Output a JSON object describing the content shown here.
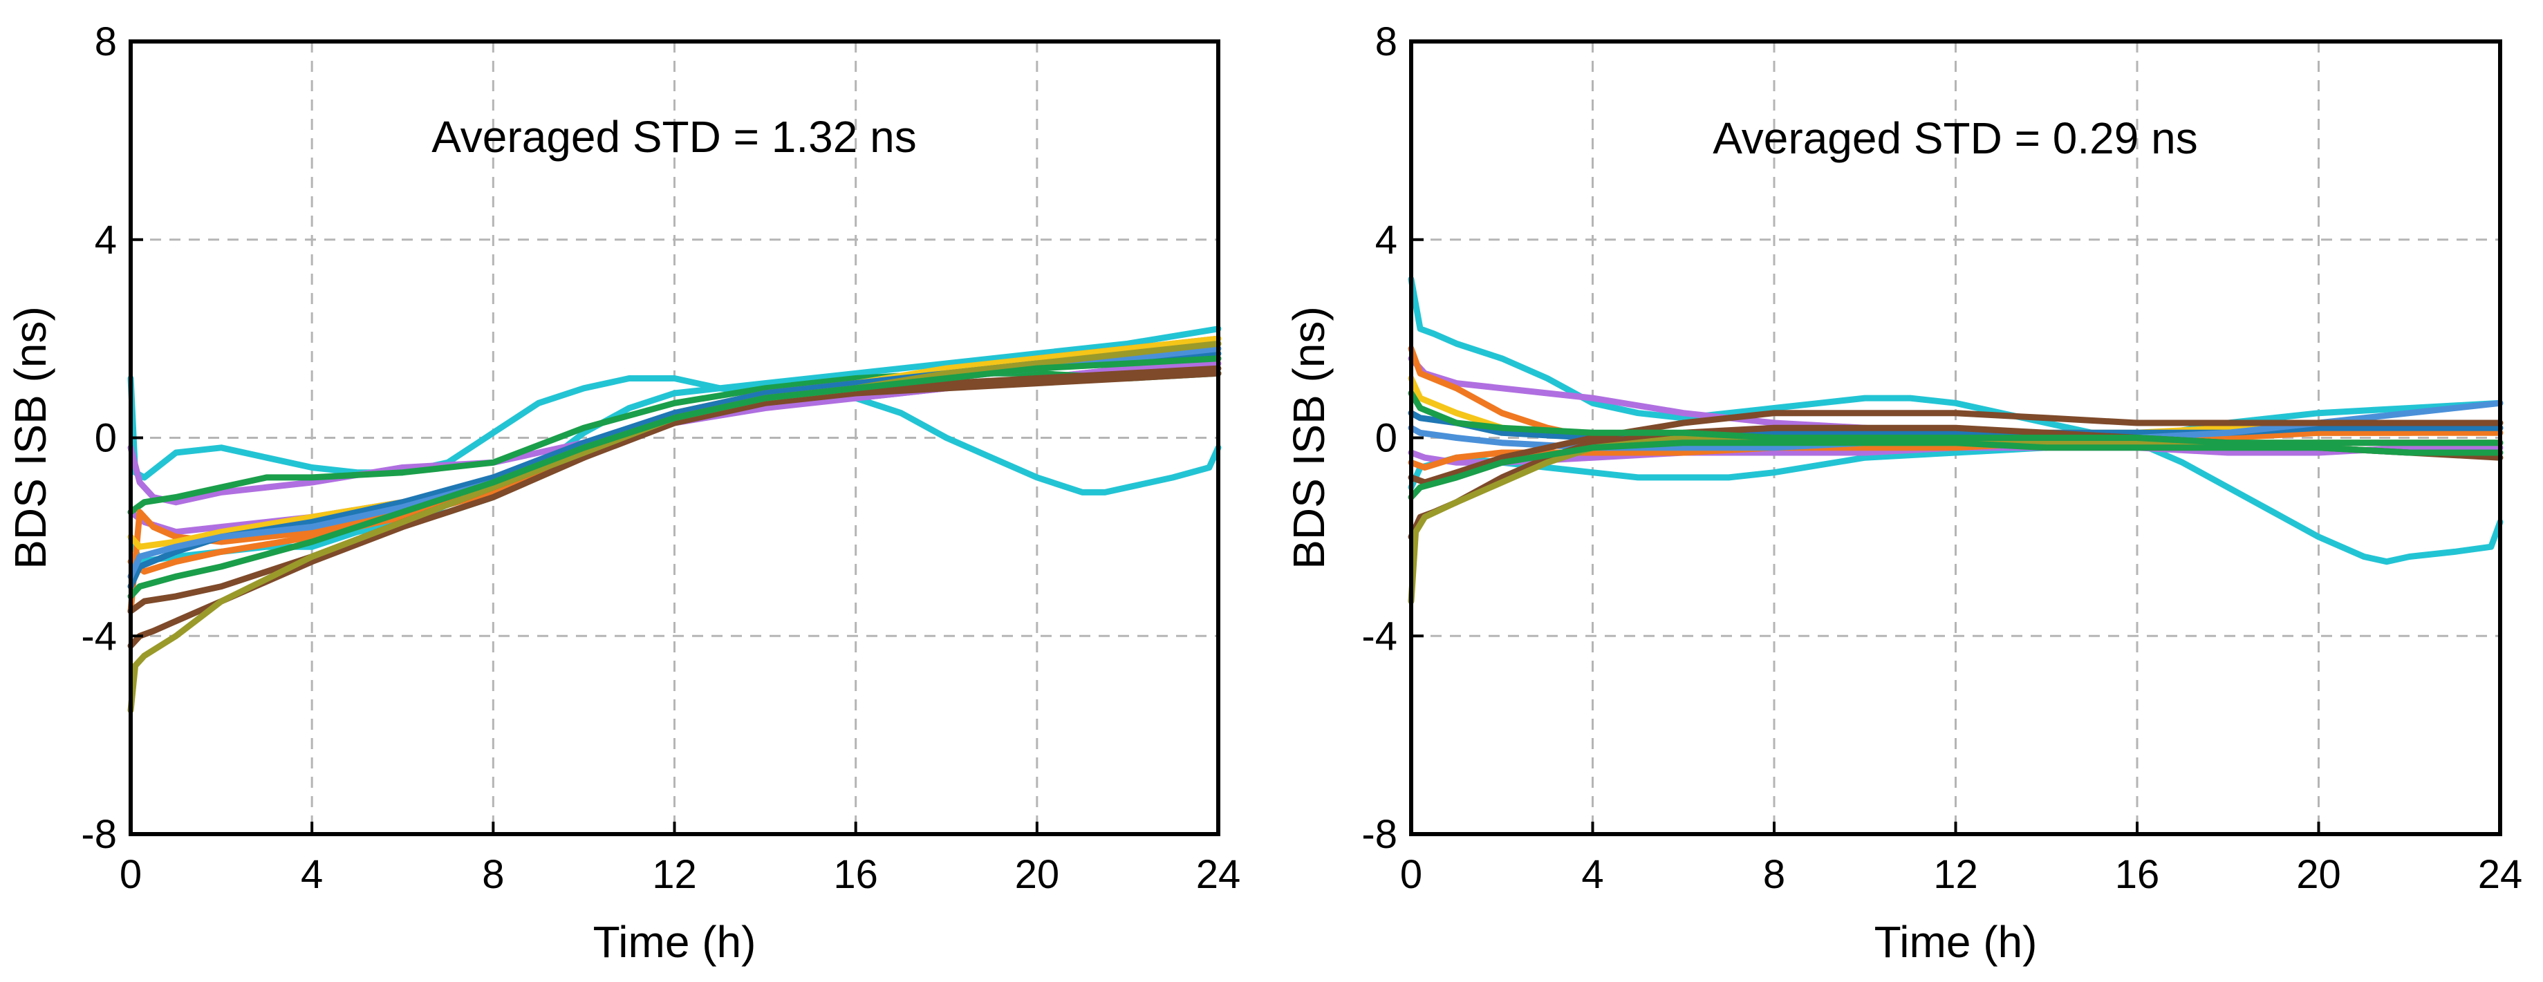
{
  "chart_data": [
    {
      "type": "line",
      "title": "",
      "annotation": "Averaged STD = 1.32 ns",
      "xlabel": "Time (h)",
      "ylabel": "BDS ISB (ns)",
      "xlim": [
        0,
        24
      ],
      "ylim": [
        -8,
        8
      ],
      "xticks": [
        "0",
        "4",
        "8",
        "12",
        "16",
        "20",
        "24"
      ],
      "yticks": [
        "8",
        "4",
        "0",
        "-4",
        "-8"
      ],
      "grid": true,
      "legend": "none",
      "series": [
        {
          "color": "#22C4D4",
          "x": [
            0,
            0.1,
            0.3,
            1,
            2,
            3,
            4,
            5,
            6,
            7,
            8,
            9,
            10,
            11,
            12,
            13,
            14,
            15,
            16,
            17,
            18,
            19,
            20,
            21,
            21.5,
            22,
            23,
            23.8,
            24
          ],
          "y": [
            1.2,
            -0.7,
            -0.8,
            -0.3,
            -0.2,
            -0.4,
            -0.6,
            -0.7,
            -0.7,
            -0.5,
            0.1,
            0.7,
            1.0,
            1.2,
            1.2,
            1.0,
            0.9,
            0.9,
            0.8,
            0.5,
            0.0,
            -0.4,
            -0.8,
            -1.1,
            -1.1,
            -1.0,
            -0.8,
            -0.6,
            -0.2
          ]
        },
        {
          "color": "#22C4D4",
          "x": [
            0,
            0.2,
            1,
            2,
            3,
            4,
            5,
            6,
            7,
            8,
            9,
            10,
            11,
            12,
            13,
            14,
            16,
            18,
            20,
            22,
            24
          ],
          "y": [
            -2.0,
            -2.5,
            -2.4,
            -2.3,
            -2.2,
            -2.2,
            -1.9,
            -1.7,
            -1.5,
            -1.2,
            -0.6,
            0.1,
            0.6,
            0.9,
            1.0,
            1.1,
            1.3,
            1.5,
            1.7,
            1.9,
            2.2
          ]
        },
        {
          "color": "#B06FE0",
          "x": [
            0,
            0.2,
            0.5,
            1,
            2,
            4,
            6,
            8,
            10,
            12,
            14,
            16,
            18,
            20,
            22,
            24
          ],
          "y": [
            -0.2,
            -0.9,
            -1.2,
            -1.3,
            -1.1,
            -0.9,
            -0.6,
            -0.5,
            -0.1,
            0.3,
            0.6,
            0.8,
            1.0,
            1.2,
            1.4,
            1.6
          ]
        },
        {
          "color": "#B06FE0",
          "x": [
            0,
            0.3,
            1,
            2,
            4,
            6,
            8,
            10,
            12,
            14,
            16,
            18,
            20,
            22,
            24
          ],
          "y": [
            -1.5,
            -1.7,
            -1.9,
            -1.8,
            -1.6,
            -1.3,
            -0.9,
            -0.2,
            0.4,
            0.7,
            0.8,
            1.0,
            1.2,
            1.4,
            1.5
          ]
        },
        {
          "color": "#1A9E4A",
          "x": [
            0,
            0.3,
            1,
            2,
            3,
            4,
            6,
            8,
            10,
            12,
            14,
            16,
            18,
            20,
            22,
            24
          ],
          "y": [
            -1.5,
            -1.3,
            -1.2,
            -1.0,
            -0.8,
            -0.8,
            -0.7,
            -0.5,
            0.2,
            0.7,
            1.0,
            1.2,
            1.3,
            1.3,
            1.2,
            1.3
          ]
        },
        {
          "color": "#F07820",
          "x": [
            0,
            0.2,
            0.5,
            1,
            2,
            4,
            6,
            8,
            10,
            12,
            14,
            16,
            18,
            20,
            22,
            24
          ],
          "y": [
            -3.5,
            -1.5,
            -1.8,
            -2.0,
            -2.1,
            -1.9,
            -1.5,
            -1.1,
            -0.4,
            0.5,
            0.9,
            1.1,
            1.3,
            1.6,
            1.8,
            2.0
          ]
        },
        {
          "color": "#F07820",
          "x": [
            0,
            0.3,
            1,
            2,
            4,
            6,
            8,
            10,
            12,
            14,
            16,
            18,
            20,
            22,
            24
          ],
          "y": [
            -2.5,
            -2.7,
            -2.5,
            -2.3,
            -2.0,
            -1.6,
            -1.1,
            -0.3,
            0.3,
            0.8,
            1.0,
            1.2,
            1.5,
            1.7,
            1.9
          ]
        },
        {
          "color": "#F5C518",
          "x": [
            0,
            0.2,
            1,
            2,
            4,
            6,
            8,
            10,
            12,
            14,
            16,
            18,
            20,
            22,
            24
          ],
          "y": [
            -2.0,
            -2.2,
            -2.1,
            -1.9,
            -1.6,
            -1.3,
            -0.9,
            -0.2,
            0.4,
            0.8,
            1.1,
            1.4,
            1.6,
            1.8,
            2.0
          ]
        },
        {
          "color": "#1F77B4",
          "x": [
            0,
            0.2,
            1,
            2,
            4,
            6,
            8,
            10,
            12,
            14,
            16,
            18,
            20,
            22,
            24
          ],
          "y": [
            -3.0,
            -2.6,
            -2.3,
            -2.0,
            -1.7,
            -1.3,
            -0.8,
            -0.1,
            0.5,
            0.9,
            1.1,
            1.3,
            1.5,
            1.6,
            1.7
          ]
        },
        {
          "color": "#4A90D9",
          "x": [
            0,
            0.2,
            1,
            2,
            4,
            6,
            8,
            10,
            12,
            14,
            16,
            18,
            20,
            22,
            24
          ],
          "y": [
            -2.8,
            -2.4,
            -2.2,
            -2.0,
            -1.8,
            -1.4,
            -0.9,
            -0.2,
            0.4,
            0.8,
            1.0,
            1.2,
            1.4,
            1.6,
            1.8
          ]
        },
        {
          "color": "#7E4A2A",
          "x": [
            0,
            0.2,
            0.5,
            1,
            2,
            4,
            6,
            8,
            10,
            12,
            14,
            16,
            18,
            20,
            22,
            24
          ],
          "y": [
            -4.2,
            -4.0,
            -3.9,
            -3.7,
            -3.3,
            -2.5,
            -1.8,
            -1.2,
            -0.4,
            0.3,
            0.7,
            0.9,
            1.0,
            1.1,
            1.2,
            1.3
          ]
        },
        {
          "color": "#7E4A2A",
          "x": [
            0,
            0.3,
            1,
            2,
            4,
            6,
            8,
            10,
            12,
            14,
            16,
            18,
            20,
            22,
            24
          ],
          "y": [
            -3.5,
            -3.3,
            -3.2,
            -3.0,
            -2.4,
            -1.7,
            -1.0,
            -0.3,
            0.4,
            0.8,
            1.0,
            1.1,
            1.2,
            1.3,
            1.4
          ]
        },
        {
          "color": "#9A9A2A",
          "x": [
            0,
            0.1,
            0.3,
            1,
            2,
            4,
            6,
            8,
            10,
            12,
            14,
            16,
            18,
            20,
            22,
            24
          ],
          "y": [
            -5.5,
            -4.6,
            -4.4,
            -4.0,
            -3.3,
            -2.4,
            -1.7,
            -1.0,
            -0.3,
            0.4,
            0.8,
            1.0,
            1.3,
            1.5,
            1.7,
            1.9
          ]
        },
        {
          "color": "#1A9E4A",
          "x": [
            0,
            0.2,
            1,
            2,
            4,
            6,
            8,
            10,
            12,
            14,
            16,
            18,
            20,
            22,
            24
          ],
          "y": [
            -3.2,
            -3.0,
            -2.8,
            -2.6,
            -2.1,
            -1.5,
            -0.9,
            -0.2,
            0.4,
            0.8,
            1.0,
            1.2,
            1.4,
            1.5,
            1.6
          ]
        }
      ]
    },
    {
      "type": "line",
      "title": "",
      "annotation": "Averaged STD = 0.29 ns",
      "xlabel": "Time (h)",
      "ylabel": "BDS ISB (ns)",
      "xlim": [
        0,
        24
      ],
      "ylim": [
        -8,
        8
      ],
      "xticks": [
        "0",
        "4",
        "8",
        "12",
        "16",
        "20",
        "24"
      ],
      "yticks": [
        "8",
        "4",
        "0",
        "-4",
        "-8"
      ],
      "grid": true,
      "legend": "none",
      "series": [
        {
          "color": "#22C4D4",
          "x": [
            0,
            0.2,
            0.5,
            1,
            2,
            3,
            4,
            5,
            6,
            7,
            8,
            9,
            10,
            11,
            12,
            13,
            14,
            15,
            16,
            17,
            18,
            19,
            20,
            21,
            21.5,
            22,
            23,
            23.8,
            24
          ],
          "y": [
            3.2,
            2.2,
            2.1,
            1.9,
            1.6,
            1.2,
            0.7,
            0.5,
            0.4,
            0.5,
            0.6,
            0.7,
            0.8,
            0.8,
            0.7,
            0.5,
            0.3,
            0.1,
            -0.1,
            -0.5,
            -1.0,
            -1.5,
            -2.0,
            -2.4,
            -2.5,
            -2.4,
            -2.3,
            -2.2,
            -1.7
          ]
        },
        {
          "color": "#22C4D4",
          "x": [
            0,
            0.2,
            1,
            2,
            3,
            4,
            5,
            6,
            7,
            8,
            10,
            12,
            14,
            16,
            18,
            20,
            22,
            24
          ],
          "y": [
            -1.0,
            -0.6,
            -0.4,
            -0.5,
            -0.6,
            -0.7,
            -0.8,
            -0.8,
            -0.8,
            -0.7,
            -0.4,
            -0.3,
            -0.2,
            0.0,
            0.3,
            0.5,
            0.6,
            0.7
          ]
        },
        {
          "color": "#B06FE0",
          "x": [
            0,
            0.3,
            1,
            2,
            3,
            4,
            6,
            8,
            10,
            12,
            14,
            16,
            18,
            20,
            22,
            24
          ],
          "y": [
            1.6,
            1.3,
            1.1,
            1.0,
            0.9,
            0.8,
            0.5,
            0.3,
            0.2,
            0.1,
            0.0,
            -0.1,
            -0.2,
            -0.2,
            -0.3,
            -0.3
          ]
        },
        {
          "color": "#B06FE0",
          "x": [
            0,
            0.3,
            1,
            2,
            4,
            6,
            8,
            10,
            12,
            14,
            16,
            18,
            20,
            22,
            24
          ],
          "y": [
            -0.3,
            -0.4,
            -0.5,
            -0.5,
            -0.4,
            -0.3,
            -0.3,
            -0.3,
            -0.2,
            -0.2,
            -0.2,
            -0.3,
            -0.3,
            -0.2,
            -0.2
          ]
        },
        {
          "color": "#F07820",
          "x": [
            0,
            0.2,
            1,
            2,
            3,
            4,
            6,
            8,
            10,
            12,
            14,
            16,
            18,
            20,
            22,
            24
          ],
          "y": [
            1.8,
            1.3,
            1.0,
            0.5,
            0.2,
            0.0,
            -0.1,
            -0.1,
            -0.1,
            -0.1,
            -0.1,
            0.0,
            0.1,
            0.1,
            0.1,
            0.1
          ]
        },
        {
          "color": "#F07820",
          "x": [
            0,
            0.3,
            1,
            2,
            4,
            6,
            8,
            10,
            12,
            14,
            16,
            18,
            20,
            22,
            24
          ],
          "y": [
            -0.5,
            -0.6,
            -0.4,
            -0.3,
            -0.3,
            -0.3,
            -0.2,
            -0.2,
            -0.2,
            -0.1,
            -0.1,
            0.0,
            0.1,
            0.1,
            0.2
          ]
        },
        {
          "color": "#F5C518",
          "x": [
            0,
            0.2,
            1,
            2,
            4,
            6,
            8,
            10,
            12,
            14,
            16,
            18,
            20,
            22,
            24
          ],
          "y": [
            1.2,
            0.8,
            0.5,
            0.2,
            0.0,
            0.0,
            0.0,
            0.0,
            0.1,
            0.1,
            0.1,
            0.2,
            0.2,
            0.3,
            0.3
          ]
        },
        {
          "color": "#1F77B4",
          "x": [
            0,
            0.2,
            1,
            2,
            4,
            6,
            8,
            10,
            12,
            14,
            16,
            18,
            20,
            22,
            24
          ],
          "y": [
            0.5,
            0.4,
            0.3,
            0.1,
            0.0,
            0.0,
            0.1,
            0.1,
            0.1,
            0.1,
            0.1,
            0.1,
            0.2,
            0.2,
            0.2
          ]
        },
        {
          "color": "#4A90D9",
          "x": [
            0,
            0.2,
            1,
            2,
            4,
            6,
            8,
            10,
            12,
            14,
            16,
            18,
            20,
            22,
            24
          ],
          "y": [
            0.2,
            0.1,
            0.0,
            -0.1,
            -0.2,
            -0.2,
            -0.2,
            -0.1,
            -0.1,
            0.0,
            0.0,
            0.1,
            0.3,
            0.5,
            0.7
          ]
        },
        {
          "color": "#7E4A2A",
          "x": [
            0,
            0.2,
            0.5,
            1,
            2,
            3,
            4,
            6,
            8,
            10,
            12,
            14,
            16,
            18,
            20,
            22,
            24
          ],
          "y": [
            -2.0,
            -1.6,
            -1.5,
            -1.3,
            -0.8,
            -0.4,
            -0.1,
            0.1,
            0.2,
            0.2,
            0.2,
            0.1,
            0.0,
            -0.1,
            -0.2,
            -0.3,
            -0.4
          ]
        },
        {
          "color": "#7E4A2A",
          "x": [
            0,
            0.3,
            1,
            2,
            4,
            6,
            8,
            10,
            12,
            14,
            16,
            18,
            20,
            22,
            24
          ],
          "y": [
            -0.8,
            -0.9,
            -0.7,
            -0.4,
            0.0,
            0.3,
            0.5,
            0.5,
            0.5,
            0.4,
            0.3,
            0.3,
            0.3,
            0.3,
            0.3
          ]
        },
        {
          "color": "#9A9A2A",
          "x": [
            0,
            0.1,
            0.3,
            1,
            2,
            3,
            4,
            6,
            8,
            10,
            12,
            14,
            16,
            18,
            20,
            22,
            24
          ],
          "y": [
            -3.3,
            -1.9,
            -1.6,
            -1.3,
            -0.9,
            -0.5,
            -0.2,
            0.0,
            0.0,
            -0.1,
            -0.1,
            -0.1,
            -0.1,
            -0.1,
            -0.1,
            -0.1,
            -0.1
          ]
        },
        {
          "color": "#1A9E4A",
          "x": [
            0,
            0.2,
            1,
            2,
            4,
            6,
            8,
            10,
            12,
            14,
            16,
            18,
            20,
            22,
            24
          ],
          "y": [
            -1.2,
            -1.0,
            -0.8,
            -0.5,
            -0.2,
            -0.1,
            -0.1,
            -0.1,
            -0.1,
            -0.2,
            -0.2,
            -0.2,
            -0.2,
            -0.3,
            -0.3
          ]
        },
        {
          "color": "#1A9E4A",
          "x": [
            0,
            0.2,
            1,
            2,
            4,
            6,
            8,
            10,
            12,
            14,
            16,
            18,
            20,
            22,
            24
          ],
          "y": [
            0.9,
            0.6,
            0.3,
            0.2,
            0.1,
            0.1,
            0.0,
            0.0,
            0.0,
            0.0,
            0.0,
            -0.1,
            -0.1,
            -0.1,
            -0.1
          ]
        }
      ]
    }
  ]
}
